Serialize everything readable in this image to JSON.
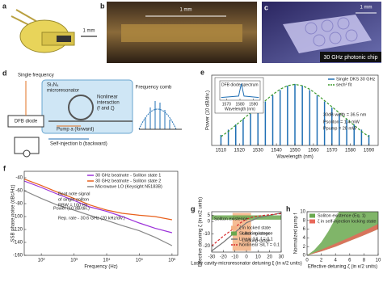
{
  "panels": {
    "a": {
      "label": "a",
      "scale": "1 mm"
    },
    "b": {
      "label": "b",
      "scale": "1 mm"
    },
    "c": {
      "label": "c",
      "scale": "1 mm",
      "caption": "30 GHz photonic chip"
    },
    "d": {
      "label": "d",
      "texts": [
        "Single frequency",
        "Si₃N₄",
        "microresonator",
        "Nonlinear",
        "interaction",
        "(f and ζ)",
        "Frequency comb",
        "DFB diode",
        "Pump a (forward)",
        "Self-injection b (backward)"
      ]
    }
  },
  "chart_data": [
    {
      "label": "e",
      "type": "line",
      "xlabel": "Wavelength (nm)",
      "ylabel": "Power (10 dB/div.)",
      "xlim": [
        1505,
        1595
      ],
      "xticks": [
        1510,
        1520,
        1530,
        1540,
        1550,
        1560,
        1570,
        1580,
        1590
      ],
      "ylim": [
        0,
        8
      ],
      "x": [
        1510,
        1514,
        1518,
        1522,
        1526,
        1530,
        1534,
        1538,
        1542,
        1546,
        1550,
        1554,
        1558,
        1562,
        1566,
        1570,
        1574,
        1578,
        1582,
        1586,
        1590
      ],
      "series": [
        {
          "name": "Single DKS 30 GHz",
          "color": "#1f6fb4",
          "style": "stem",
          "values": [
            1.2,
            1.8,
            2.4,
            3.0,
            3.6,
            4.3,
            5.0,
            5.7,
            6.3,
            6.8,
            7.0,
            6.8,
            6.3,
            5.7,
            5.0,
            4.3,
            3.6,
            3.0,
            2.4,
            1.8,
            1.2
          ]
        },
        {
          "name": "sech² fit",
          "color": "#3a9a2a",
          "style": "dashed",
          "values": [
            1.0,
            1.6,
            2.3,
            3.0,
            3.7,
            4.4,
            5.1,
            5.8,
            6.4,
            6.8,
            6.95,
            6.8,
            6.4,
            5.8,
            5.1,
            4.4,
            3.7,
            3.0,
            2.3,
            1.6,
            1.0
          ]
        }
      ],
      "legend": "upper-right",
      "annotations": [
        "30dB width = 36.5 nm",
        "Psoliton = 1.4 mW",
        "Ppump = 20 mW"
      ],
      "inset": {
        "title": "DFB diode spectrum",
        "xlabel": "Wavelength (nm)",
        "xlim": [
          1565,
          1595
        ],
        "xticks": [
          1570,
          1580,
          1590
        ],
        "ylim": [
          0,
          7
        ],
        "x": [
          1566,
          1579,
          1581,
          1583,
          1594
        ],
        "values": [
          1,
          1.5,
          6,
          1.5,
          1
        ],
        "color": "#1f6fb4"
      }
    },
    {
      "label": "f",
      "type": "line",
      "xlabel": "Frequency (Hz)",
      "ylabel": "SSB phase noise (dBc/Hz)",
      "xscale": "log",
      "xlim": [
        30,
        1500000
      ],
      "xticks": [
        {
          "value": 100,
          "label": "10²"
        },
        {
          "value": 1000,
          "label": "10³"
        },
        {
          "value": 10000,
          "label": "10⁴"
        },
        {
          "value": 100000,
          "label": "10⁵"
        },
        {
          "value": 1000000,
          "label": "10⁶"
        }
      ],
      "ylim": [
        -160,
        -30
      ],
      "yticks": [
        -160,
        -140,
        -120,
        -100,
        -80,
        -60,
        -40
      ],
      "x": [
        30,
        100,
        300,
        1000,
        3000,
        10000,
        30000,
        100000,
        300000,
        1000000
      ],
      "series": [
        {
          "name": "30 GHz beatnote - Soliton state 1",
          "color": "#9b30d9",
          "style": "solid",
          "values": [
            -45,
            -55,
            -65,
            -75,
            -85,
            -92,
            -100,
            -110,
            -118,
            -125
          ]
        },
        {
          "name": "30 GHz beatnote - Soliton state 2",
          "color": "#e8601c",
          "style": "solid",
          "values": [
            -42,
            -52,
            -62,
            -72,
            -82,
            -90,
            -95,
            -98,
            -100,
            -105
          ]
        },
        {
          "name": "Microwave LO (Keysight N5183B)",
          "color": "#888888",
          "style": "solid",
          "values": [
            -60,
            -72,
            -82,
            -90,
            -98,
            -106,
            -114,
            -122,
            -132,
            -145
          ]
        }
      ],
      "legend": "upper-right",
      "annotations": [
        "Beat note signal",
        "of single soliton",
        "RBW = 100 Hz",
        "Rep. rate - 30.6 GHz (20 kHz/div.)",
        "Power (10 dB/div.)"
      ]
    },
    {
      "label": "g",
      "type": "line",
      "xlabel": "Laser cavity-microresonator detuning ξ (in κ/2 units)",
      "ylabel": "Effective detuning ζ (in κ/2 units)",
      "xlim": [
        -30,
        30
      ],
      "xticks": [
        -30,
        -20,
        -10,
        0,
        10,
        20,
        30
      ],
      "ylim": [
        -25,
        8
      ],
      "yticks": [
        -20,
        -10,
        0,
        5
      ],
      "x": [
        -30,
        -20,
        -10,
        -5,
        0,
        5,
        10,
        20,
        30
      ],
      "series": [
        {
          "name": "ζ in locked state",
          "color": "#f4b183",
          "style": "band",
          "x": [
            -12,
            4,
            4,
            -12
          ],
          "values": [
            -24,
            -24,
            7,
            7
          ]
        },
        {
          "name": "Soliton existence",
          "color": "#6aa84f",
          "style": "band",
          "x": [
            -30,
            30,
            30,
            -30
          ],
          "values": [
            1.5,
            1.5,
            5,
            5
          ]
        },
        {
          "name": "Linear SIL f = 0.1",
          "color": "#777777",
          "style": "solid",
          "values": [
            -24,
            -17,
            -9,
            -5,
            -1,
            1,
            3,
            5,
            7
          ]
        },
        {
          "name": "Nonlinear SIL f = 0.1",
          "color": "#d62728",
          "style": "dashed",
          "values": [
            -20,
            -12,
            -5,
            -1,
            2,
            3.5,
            4.5,
            5.5,
            6.5
          ]
        }
      ],
      "legend": "lower-right",
      "annotations": [
        "Soliton existence",
        "Locking range",
        "Locking range"
      ]
    },
    {
      "label": "h",
      "type": "line",
      "xlabel": "Effective detuning ζ (in κ/2 units)",
      "ylabel": "Normalized pump f",
      "xlim": [
        0,
        10
      ],
      "xticks": [
        0,
        2,
        4,
        6,
        8,
        10
      ],
      "ylim": [
        0,
        10
      ],
      "yticks": [
        0,
        2,
        4,
        6,
        8,
        10
      ],
      "series": [
        {
          "name": "Soliton existence (Eq. 1)",
          "color": "#6aa84f",
          "style": "band",
          "x": [
            0,
            1,
            2,
            3,
            4,
            4.5,
            10,
            10,
            8,
            6,
            4,
            2,
            0
          ],
          "values": [
            0,
            1.2,
            3,
            5.5,
            8.5,
            10,
            10,
            6,
            4.6,
            3.3,
            2,
            0.9,
            0
          ]
        },
        {
          "name": "ζ in self-injection locking state",
          "color": "#e8685a",
          "style": "band",
          "x": [
            0,
            2,
            4,
            6,
            8,
            10,
            10,
            8,
            6,
            4,
            2
          ],
          "values": [
            0,
            1.3,
            2.7,
            4.1,
            5.6,
            7.2,
            6,
            4.6,
            3.3,
            2,
            0.9
          ]
        }
      ],
      "legend": "upper-left"
    }
  ]
}
